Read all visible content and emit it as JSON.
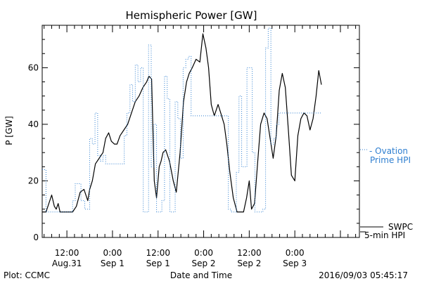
{
  "chart_data": {
    "type": "line",
    "title": "Hemispheric Power [GW]",
    "ylabel": "P [GW]",
    "xlabel": "Date and Time",
    "ylim": [
      0,
      75
    ],
    "xlim_hours": [
      -18.5,
      65
    ],
    "yticks": [
      0,
      20,
      40,
      60
    ],
    "xticks": [
      {
        "hour": -12,
        "line1": "12:00",
        "line2": "Aug.31"
      },
      {
        "hour": 0,
        "line1": "0:00",
        "line2": "Sep 1"
      },
      {
        "hour": 12,
        "line1": "12:00",
        "line2": "Sep 1"
      },
      {
        "hour": 24,
        "line1": "0:00",
        "line2": "Sep 2"
      },
      {
        "hour": 36,
        "line1": "12:00",
        "line2": "Sep 2"
      },
      {
        "hour": 48,
        "line1": "0:00",
        "line2": "Sep 3"
      }
    ],
    "legend": {
      "ovation_line1": "- Ovation",
      "ovation_line2": "Prime HPI",
      "swpc_line1": "SWPC",
      "swpc_line2": "5-min HPI"
    },
    "footer": {
      "left": "Plot: CCMC",
      "right": "2016/09/03 05:45:17"
    },
    "colors": {
      "swpc": "#000000",
      "ovation": "#2f7fd0"
    },
    "series": [
      {
        "name": "SWPC 5-min HPI",
        "style": "solid",
        "x": [
          -18.5,
          -17.5,
          -16,
          -15.3,
          -14.8,
          -14.3,
          -13.8,
          -12.5,
          -11.2,
          -10.5,
          -9.5,
          -8.5,
          -7.5,
          -6.5,
          -6,
          -5.3,
          -4.5,
          -3.5,
          -2.5,
          -1.8,
          -1,
          -0.3,
          0.5,
          1.2,
          2,
          3,
          4,
          5,
          6,
          7,
          8,
          9,
          9.6,
          10.3,
          11,
          11.6,
          12.3,
          12.8,
          13.3,
          14,
          15,
          16,
          16.8,
          17.8,
          18.7,
          19.5,
          20.2,
          21,
          22,
          23,
          23.8,
          24.6,
          25.3,
          26,
          26.8,
          27.8,
          28.5,
          29.4,
          30.1,
          30.9,
          31.8,
          32.8,
          33.6,
          34.5,
          35.3,
          36,
          36.6,
          37.4,
          38.3,
          39,
          39.9,
          40.7,
          41.5,
          42.3,
          43.1,
          43.9,
          44.7,
          45.5,
          46.3,
          47.1,
          48,
          48.8,
          49.6,
          50.4,
          51.2,
          52,
          52.8,
          53.6,
          54.3,
          55
        ],
        "values": [
          9,
          9,
          15,
          11,
          10,
          12,
          9,
          9,
          9,
          9,
          11,
          16,
          17,
          13,
          17,
          20,
          26,
          28,
          30,
          35,
          37,
          34,
          33,
          33,
          36,
          38,
          40,
          44,
          48,
          50,
          53,
          55,
          57,
          56,
          20,
          14,
          25,
          27,
          30,
          31,
          27,
          20,
          16,
          30,
          48,
          55,
          58,
          60,
          63,
          62,
          72,
          67,
          60,
          47,
          43,
          47,
          44,
          40,
          33,
          23,
          14,
          9,
          9,
          9,
          14,
          20,
          10,
          12,
          28,
          40,
          44,
          42,
          35,
          28,
          36,
          52,
          58,
          53,
          38,
          22,
          20,
          36,
          42,
          44,
          43,
          38,
          42,
          50,
          59,
          54
        ]
      },
      {
        "name": "Ovation Prime HPI",
        "style": "dotted",
        "x": [
          -18.5,
          -18,
          -17.5,
          -16.8,
          -16,
          -15.5,
          -14.5,
          -13.5,
          -12.5,
          -11.5,
          -10.5,
          -9.8,
          -9,
          -8.3,
          -7.3,
          -6.7,
          -6,
          -5.3,
          -4.6,
          -3.9,
          -3.2,
          -2.5,
          -1.8,
          -1.1,
          -0.4,
          0.3,
          1,
          1.7,
          2.4,
          3.1,
          3.8,
          4.6,
          5.3,
          6,
          6.7,
          7.4,
          8.1,
          8.8,
          9.5,
          10.2,
          10.9,
          11.6,
          12.3,
          13,
          13.7,
          14.4,
          15.1,
          15.8,
          16.5,
          17.2,
          17.9,
          18.6,
          19.3,
          20,
          20.7,
          21.4,
          22.1,
          22.8,
          23.5,
          24.2,
          24.9,
          25.6,
          26.3,
          27,
          27.7,
          28.4,
          29.1,
          29.8,
          30.5,
          31.2,
          31.9,
          32.6,
          33.3,
          34,
          34.7,
          35.4,
          36.1,
          36.8,
          37.5,
          38.2,
          38.9,
          39.6,
          40.3,
          41,
          41.7,
          42.4,
          43.1,
          43.8,
          44.5,
          45.2,
          45.9,
          46.6,
          47.3,
          48,
          48.7,
          49.4,
          50.1,
          50.8,
          51.5,
          52.2,
          52.9,
          53.6,
          54.3,
          55
        ],
        "values": [
          24,
          24,
          9,
          9,
          9,
          9,
          9,
          9,
          9,
          9,
          13,
          19,
          19,
          13,
          10,
          10,
          35,
          33,
          44,
          29,
          27,
          29,
          26,
          26,
          26,
          26,
          26,
          26,
          26,
          36,
          44,
          54,
          48,
          61,
          55,
          60,
          9,
          9,
          68,
          25,
          40,
          9,
          9,
          13,
          57,
          49,
          9,
          9,
          48,
          42,
          28,
          60,
          63,
          64,
          43,
          43,
          43,
          43,
          43,
          43,
          43,
          43,
          43,
          43,
          43,
          43,
          43,
          43,
          10,
          9,
          9,
          23,
          50,
          25,
          25,
          60,
          60,
          30,
          9,
          9,
          9,
          10,
          67,
          74,
          33,
          35,
          40,
          44,
          44,
          44,
          44,
          44,
          44,
          44,
          44,
          44,
          44,
          44,
          44,
          44,
          44,
          44,
          44,
          44
        ]
      }
    ]
  }
}
